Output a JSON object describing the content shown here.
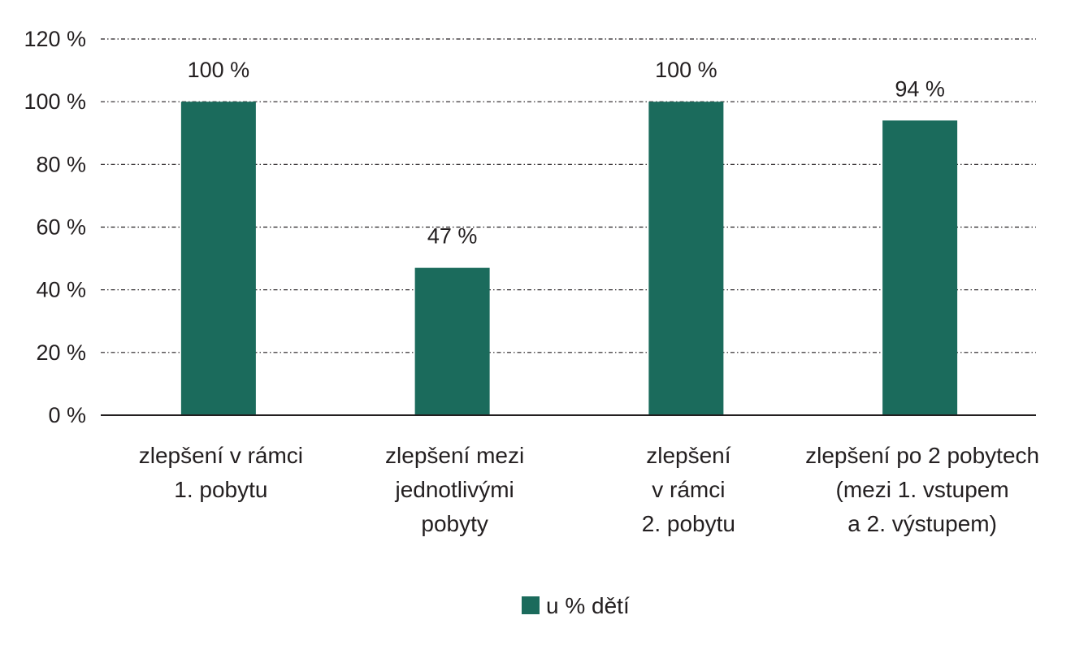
{
  "chart_data": {
    "type": "bar",
    "title": "",
    "xlabel": "",
    "ylabel": "",
    "categories": [
      [
        "zlepšení v rámci",
        "1. pobytu"
      ],
      [
        "zlepšení mezi",
        "jednotlivými",
        "pobyty"
      ],
      [
        "zlepšení",
        "v rámci",
        "2. pobytu"
      ],
      [
        "zlepšení po 2 pobytech",
        "(mezi 1. vstupem",
        "a 2. výstupem)"
      ]
    ],
    "series": [
      {
        "name": "u % dětí",
        "values": [
          100,
          47,
          100,
          94
        ],
        "data_labels": [
          "100 %",
          "47 %",
          "100 %",
          "94 %"
        ],
        "color": "#1b6b5c"
      }
    ],
    "ylim": [
      0,
      120
    ],
    "yticks": [
      0,
      20,
      40,
      60,
      80,
      100,
      120
    ],
    "ytick_labels": [
      "0 %",
      "20 %",
      "40 %",
      "60 %",
      "80 %",
      "100 %",
      "120 %"
    ],
    "grid": true,
    "grid_style": "dash-dot",
    "legend": {
      "position": "bottom",
      "entries": [
        "u % dětí"
      ]
    },
    "colors": {
      "bar": "#1b6b5c",
      "axis": "#231f20",
      "grid": "#231f20",
      "text": "#231f20"
    }
  }
}
